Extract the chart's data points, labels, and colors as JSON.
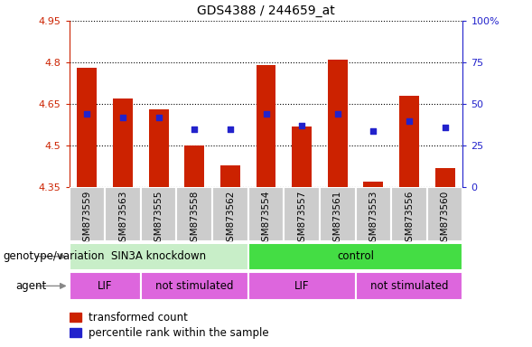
{
  "title": "GDS4388 / 244659_at",
  "samples": [
    "GSM873559",
    "GSM873563",
    "GSM873555",
    "GSM873558",
    "GSM873562",
    "GSM873554",
    "GSM873557",
    "GSM873561",
    "GSM873553",
    "GSM873556",
    "GSM873560"
  ],
  "bar_values": [
    4.78,
    4.67,
    4.63,
    4.5,
    4.43,
    4.79,
    4.57,
    4.81,
    4.37,
    4.68,
    4.42
  ],
  "blue_pct": [
    44,
    42,
    42,
    35,
    35,
    44,
    37,
    44,
    34,
    40,
    36
  ],
  "ymin": 4.35,
  "ymax": 4.95,
  "yticks": [
    4.35,
    4.5,
    4.65,
    4.8,
    4.95
  ],
  "ytick_labels": [
    "4.35",
    "4.5",
    "4.65",
    "4.8",
    "4.95"
  ],
  "right_yticks": [
    0,
    25,
    50,
    75,
    100
  ],
  "right_ytick_labels": [
    "0",
    "25",
    "50",
    "75",
    "100%"
  ],
  "bar_color": "#cc2200",
  "blue_color": "#2222cc",
  "bar_bottom": 4.35,
  "genotype_colors": [
    "#c8eec8",
    "#44dd44"
  ],
  "genotype_groups": [
    {
      "label": "SIN3A knockdown",
      "start": 0,
      "end": 5
    },
    {
      "label": "control",
      "start": 5,
      "end": 11
    }
  ],
  "agent_color": "#dd66dd",
  "agent_groups": [
    {
      "label": "LIF",
      "start": 0,
      "end": 2
    },
    {
      "label": "not stimulated",
      "start": 2,
      "end": 5
    },
    {
      "label": "LIF",
      "start": 5,
      "end": 8
    },
    {
      "label": "not stimulated",
      "start": 8,
      "end": 11
    }
  ],
  "left_axis_color": "#cc2200",
  "right_axis_color": "#2222cc",
  "xticklabel_bg": "#cccccc",
  "legend_items": [
    {
      "label": "transformed count",
      "color": "#cc2200"
    },
    {
      "label": "percentile rank within the sample",
      "color": "#2222cc"
    }
  ],
  "genotype_label": "genotype/variation",
  "agent_label": "agent"
}
